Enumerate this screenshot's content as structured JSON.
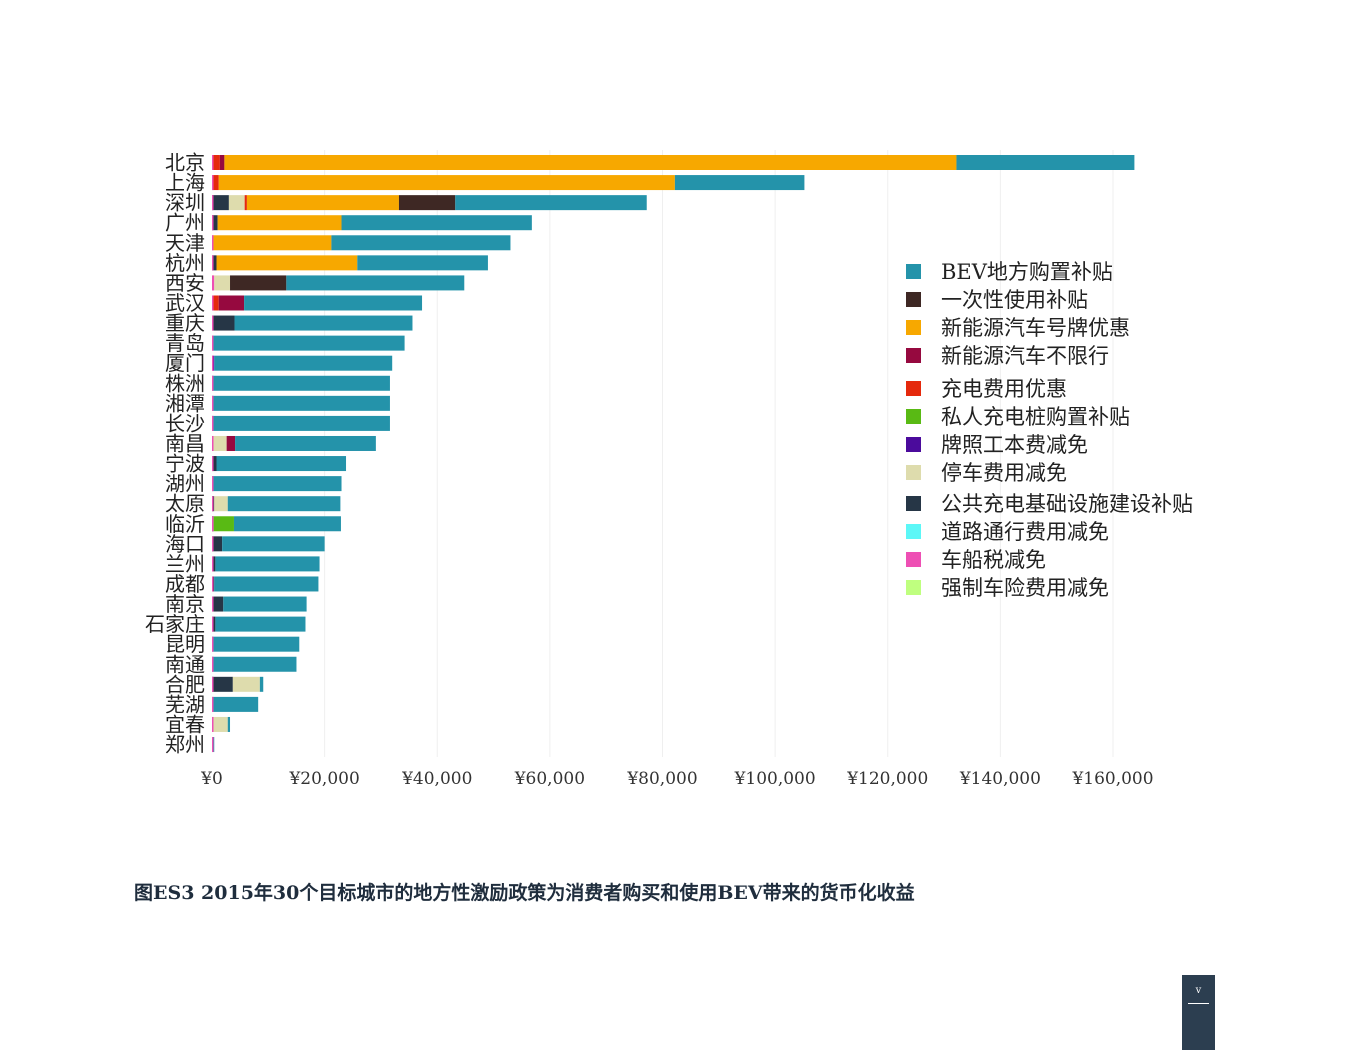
{
  "chart_data": {
    "type": "bar",
    "orientation": "horizontal",
    "stacked": true,
    "categories": [
      "北京",
      "上海",
      "深圳",
      "广州",
      "天津",
      "杭州",
      "西安",
      "武汉",
      "重庆",
      "青岛",
      "厦门",
      "株洲",
      "湘潭",
      "长沙",
      "南昌",
      "宁波",
      "湖州",
      "太原",
      "临沂",
      "海口",
      "兰州",
      "成都",
      "南京",
      "石家庄",
      "昆明",
      "南通",
      "合肥",
      "芜湖",
      "宜春",
      "郑州"
    ],
    "series": [
      {
        "name": "强制车险费用减免",
        "color": "#bfff7f",
        "values": [
          0,
          0,
          0,
          0,
          0,
          0,
          200,
          0,
          0,
          0,
          0,
          0,
          0,
          0,
          0,
          0,
          0,
          0,
          0,
          0,
          0,
          0,
          0,
          0,
          0,
          0,
          0,
          0,
          0,
          0
        ]
      },
      {
        "name": "车船税减免",
        "color": "#ee4fb4",
        "values": [
          200,
          200,
          0,
          0,
          200,
          0,
          200,
          0,
          0,
          200,
          200,
          0,
          0,
          0,
          200,
          0,
          0,
          0,
          0,
          0,
          200,
          0,
          0,
          0,
          0,
          0,
          0,
          200,
          0,
          200
        ]
      },
      {
        "name": "道路通行费用减免",
        "color": "#5cf7f7",
        "values": [
          0,
          0,
          0,
          0,
          0,
          0,
          0,
          0,
          0,
          0,
          0,
          0,
          0,
          0,
          0,
          0,
          0,
          0,
          0,
          0,
          0,
          0,
          0,
          0,
          0,
          0,
          0,
          0,
          0,
          0
        ]
      },
      {
        "name": "公共充电基础设施建设补贴",
        "color": "#263646",
        "values": [
          0,
          0,
          3000,
          1000,
          0,
          800,
          0,
          0,
          4000,
          0,
          0,
          0,
          0,
          0,
          0,
          800,
          0,
          400,
          300,
          1800,
          400,
          400,
          2000,
          600,
          0,
          0,
          3700,
          0,
          0,
          0
        ]
      },
      {
        "name": "停车费用减免",
        "color": "#dedcad",
        "values": [
          0,
          0,
          2800,
          0,
          0,
          0,
          2800,
          0,
          0,
          0,
          0,
          0,
          0,
          0,
          2400,
          0,
          0,
          2400,
          0,
          0,
          0,
          0,
          0,
          0,
          0,
          0,
          4800,
          0,
          2800,
          0
        ]
      },
      {
        "name": "牌照工本费减免",
        "color": "#4b0b9c",
        "values": [
          0,
          0,
          0,
          0,
          0,
          0,
          0,
          0,
          0,
          0,
          200,
          0,
          0,
          0,
          0,
          0,
          0,
          0,
          0,
          0,
          0,
          0,
          0,
          0,
          0,
          0,
          0,
          0,
          0,
          0
        ]
      },
      {
        "name": "私人充电桩购置补贴",
        "color": "#59ba14",
        "values": [
          0,
          0,
          0,
          0,
          0,
          0,
          0,
          0,
          0,
          0,
          0,
          0,
          0,
          0,
          0,
          0,
          0,
          0,
          3600,
          0,
          0,
          0,
          0,
          0,
          0,
          0,
          0,
          0,
          0,
          0
        ]
      },
      {
        "name": "充电费用优惠",
        "color": "#e5290c",
        "values": [
          1200,
          1000,
          400,
          0,
          0,
          0,
          0,
          1200,
          0,
          0,
          0,
          0,
          0,
          0,
          0,
          0,
          0,
          0,
          0,
          0,
          0,
          0,
          0,
          0,
          0,
          0,
          0,
          0,
          0,
          0
        ]
      },
      {
        "name": "新能源汽车不限行",
        "color": "#96093f",
        "values": [
          800,
          0,
          0,
          0,
          0,
          0,
          0,
          4500,
          0,
          0,
          0,
          0,
          0,
          0,
          1500,
          0,
          0,
          0,
          0,
          0,
          0,
          0,
          0,
          0,
          0,
          0,
          0,
          0,
          0,
          0
        ]
      },
      {
        "name": "新能源汽车号牌优惠",
        "color": "#f7a800",
        "values": [
          130000,
          81000,
          27000,
          22000,
          21000,
          25000,
          0,
          0,
          0,
          0,
          0,
          0,
          0,
          0,
          0,
          0,
          0,
          0,
          0,
          0,
          0,
          0,
          0,
          0,
          0,
          0,
          0,
          0,
          0,
          0
        ]
      },
      {
        "name": "一次性使用补贴",
        "color": "#3e2824",
        "values": [
          0,
          0,
          10000,
          0,
          0,
          0,
          10000,
          0,
          0,
          0,
          0,
          0,
          0,
          0,
          0,
          0,
          0,
          0,
          0,
          0,
          0,
          0,
          0,
          0,
          0,
          0,
          0,
          0,
          0,
          0
        ]
      },
      {
        "name": "BEV地方购置补贴",
        "color": "#2493aa",
        "values": [
          31600,
          23000,
          34000,
          33800,
          31800,
          23200,
          31600,
          31600,
          31600,
          34000,
          31600,
          31600,
          31600,
          31600,
          25000,
          23000,
          23000,
          20000,
          19000,
          18200,
          18500,
          18500,
          14800,
          16000,
          15500,
          15000,
          600,
          8000,
          400,
          200
        ]
      }
    ],
    "x_ticks": [
      "¥0",
      "¥20,000",
      "¥40,000",
      "¥60,000",
      "¥80,000",
      "¥100,000",
      "¥120,000",
      "¥140,000",
      "¥160,000"
    ],
    "xlim": [
      0,
      170000
    ],
    "grid": true,
    "legend_placement": "right",
    "legend": [
      {
        "label": "BEV地方购置补贴",
        "color": "#2493aa"
      },
      {
        "label": "一次性使用补贴",
        "color": "#3e2824"
      },
      {
        "label": "新能源汽车号牌优惠",
        "color": "#f7a800"
      },
      {
        "label": "新能源汽车不限行",
        "color": "#96093f"
      },
      {
        "label": "充电费用优惠",
        "color": "#e5290c"
      },
      {
        "label": "私人充电桩购置补贴",
        "color": "#59ba14"
      },
      {
        "label": "牌照工本费减免",
        "color": "#4b0b9c"
      },
      {
        "label": "停车费用减免",
        "color": "#dedcad"
      },
      {
        "label": "公共充电基础设施建设补贴",
        "color": "#263646"
      },
      {
        "label": "道路通行费用减免",
        "color": "#5cf7f7"
      },
      {
        "label": "车船税减免",
        "color": "#ee4fb4"
      },
      {
        "label": "强制车险费用减免",
        "color": "#bfff7f"
      }
    ]
  },
  "caption": "图ES3 2015年30个目标城市的地方性激励政策为消费者购买和使用BEV带来的货币化收益",
  "page_number": "v"
}
